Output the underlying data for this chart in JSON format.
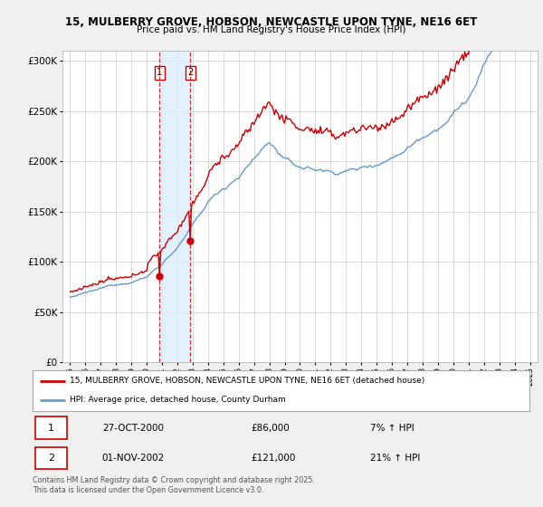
{
  "title1": "15, MULBERRY GROVE, HOBSON, NEWCASTLE UPON TYNE, NE16 6ET",
  "title2": "Price paid vs. HM Land Registry's House Price Index (HPI)",
  "legend_line1": "15, MULBERRY GROVE, HOBSON, NEWCASTLE UPON TYNE, NE16 6ET (detached house)",
  "legend_line2": "HPI: Average price, detached house, County Durham",
  "footer": "Contains HM Land Registry data © Crown copyright and database right 2025.\nThis data is licensed under the Open Government Licence v3.0.",
  "sale1_date": "27-OCT-2000",
  "sale1_price": "£86,000",
  "sale1_hpi": "7% ↑ HPI",
  "sale2_date": "01-NOV-2002",
  "sale2_price": "£121,000",
  "sale2_hpi": "21% ↑ HPI",
  "sale1_year": 2000.82,
  "sale1_value": 86000,
  "sale2_year": 2002.84,
  "sale2_value": 121000,
  "red_color": "#cc0000",
  "blue_color": "#6699cc",
  "background_color": "#f0f0f0",
  "plot_bg_color": "#ffffff",
  "grid_color": "#cccccc",
  "highlight_color": "#ddeeff",
  "ylim": [
    0,
    310000
  ],
  "xlim_start": 1994.5,
  "xlim_end": 2025.5,
  "yticks": [
    0,
    50000,
    100000,
    150000,
    200000,
    250000,
    300000
  ]
}
